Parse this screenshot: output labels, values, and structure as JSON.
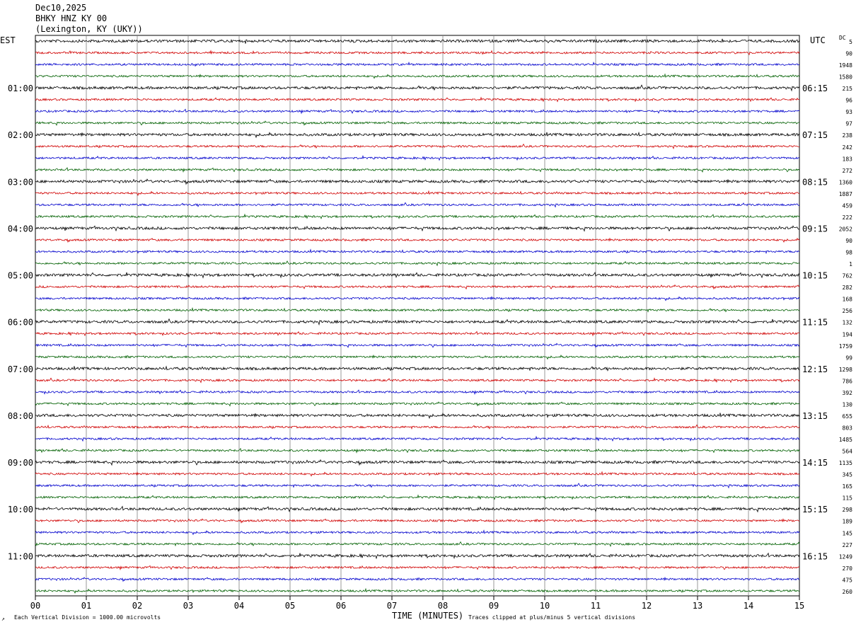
{
  "header": {
    "date": "Dec10,2025",
    "station": "BHKY HNZ KY 00",
    "location": "(Lexington, KY (UKY))"
  },
  "left_tz": "EST",
  "right_tz": "UTC",
  "dc_label": "DC",
  "footer": {
    "scale_note": "Each Vertical Division = 1000.00 microvolts",
    "xlabel": "TIME (MINUTES)",
    "clip_note": "Traces clipped at plus/minus 5 vertical divisions",
    "corner_mark": "↗"
  },
  "colors": {
    "trace_cycle": [
      "#000000",
      "#d00000",
      "#0000cc",
      "#006000"
    ],
    "grid": "#808080",
    "background": "#ffffff"
  },
  "chart_data": {
    "type": "line",
    "title": "",
    "xlabel": "TIME (MINUTES)",
    "ylabel": "",
    "xlim": [
      0,
      15
    ],
    "x_ticks": [
      "00",
      "01",
      "02",
      "03",
      "04",
      "05",
      "06",
      "07",
      "08",
      "09",
      "10",
      "11",
      "12",
      "13",
      "14",
      "15"
    ],
    "grid": true,
    "trace_count": 48,
    "traces_per_hour": 4,
    "left_hour_labels": [
      "01:00",
      "02:00",
      "03:00",
      "04:00",
      "05:00",
      "06:00",
      "07:00",
      "08:00",
      "09:00",
      "10:00",
      "11:00"
    ],
    "right_hour_labels": [
      "06:15",
      "07:15",
      "08:15",
      "09:15",
      "10:15",
      "11:15",
      "12:15",
      "13:15",
      "14:15",
      "15:15",
      "16:15"
    ],
    "hour_label_trace_index": [
      4,
      8,
      12,
      16,
      20,
      24,
      28,
      32,
      36,
      40,
      44
    ],
    "dc_offsets": [
      "5",
      "90",
      "1948",
      "1580",
      "215",
      "96",
      "93",
      "97",
      "238",
      "242",
      "183",
      "272",
      "1360",
      "1887",
      "459",
      "222",
      "2052",
      "90",
      "98",
      "1",
      "762",
      "282",
      "168",
      "256",
      "132",
      "194",
      "1759",
      "99",
      "1298",
      "786",
      "392",
      "130",
      "655",
      "803",
      "1485",
      "564",
      "1135",
      "345",
      "165",
      "115",
      "298",
      "189",
      "145",
      "227",
      "1249",
      "270",
      "475",
      "260"
    ]
  }
}
